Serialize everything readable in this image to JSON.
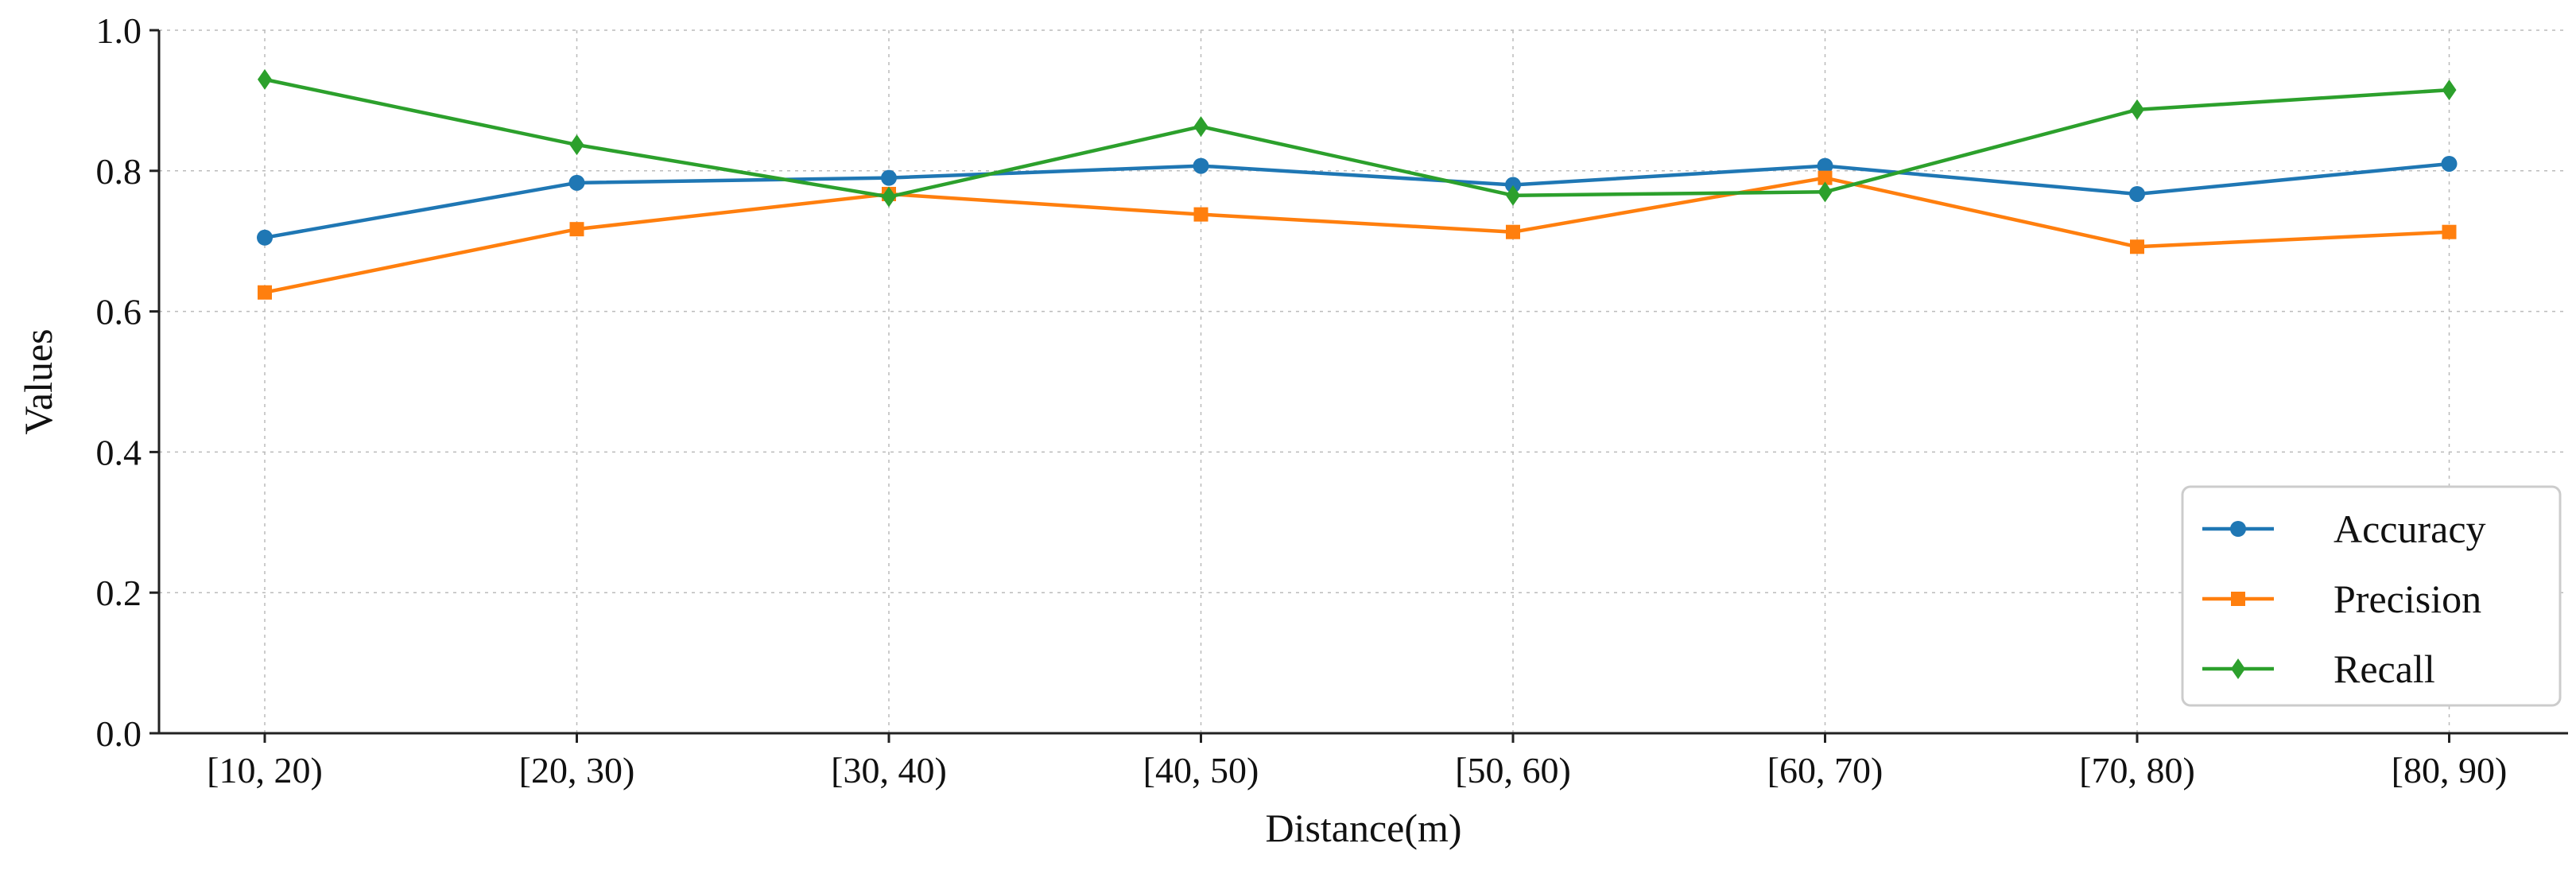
{
  "chart_data": {
    "type": "line",
    "title": "",
    "xlabel": "Distance(m)",
    "ylabel": "Values",
    "categories": [
      "[10, 20)",
      "[20, 30)",
      "[30, 40)",
      "[40, 50)",
      "[50, 60)",
      "[60, 70)",
      "[70, 80)",
      "[80, 90)"
    ],
    "ylim": [
      0,
      1.0
    ],
    "yticks": [
      "0.0",
      "0.2",
      "0.4",
      "0.6",
      "0.8",
      "1.0"
    ],
    "grid": true,
    "legend_position": "lower-right",
    "series": [
      {
        "name": "Accuracy",
        "color": "#1f77b4",
        "marker": "circle",
        "values": [
          0.705,
          0.783,
          0.79,
          0.807,
          0.78,
          0.807,
          0.767,
          0.81
        ]
      },
      {
        "name": "Precision",
        "color": "#ff7f0e",
        "marker": "square",
        "values": [
          0.627,
          0.717,
          0.767,
          0.738,
          0.713,
          0.79,
          0.692,
          0.713
        ]
      },
      {
        "name": "Recall",
        "color": "#2ca02c",
        "marker": "diamond",
        "values": [
          0.93,
          0.837,
          0.763,
          0.863,
          0.765,
          0.77,
          0.887,
          0.915
        ]
      }
    ]
  }
}
